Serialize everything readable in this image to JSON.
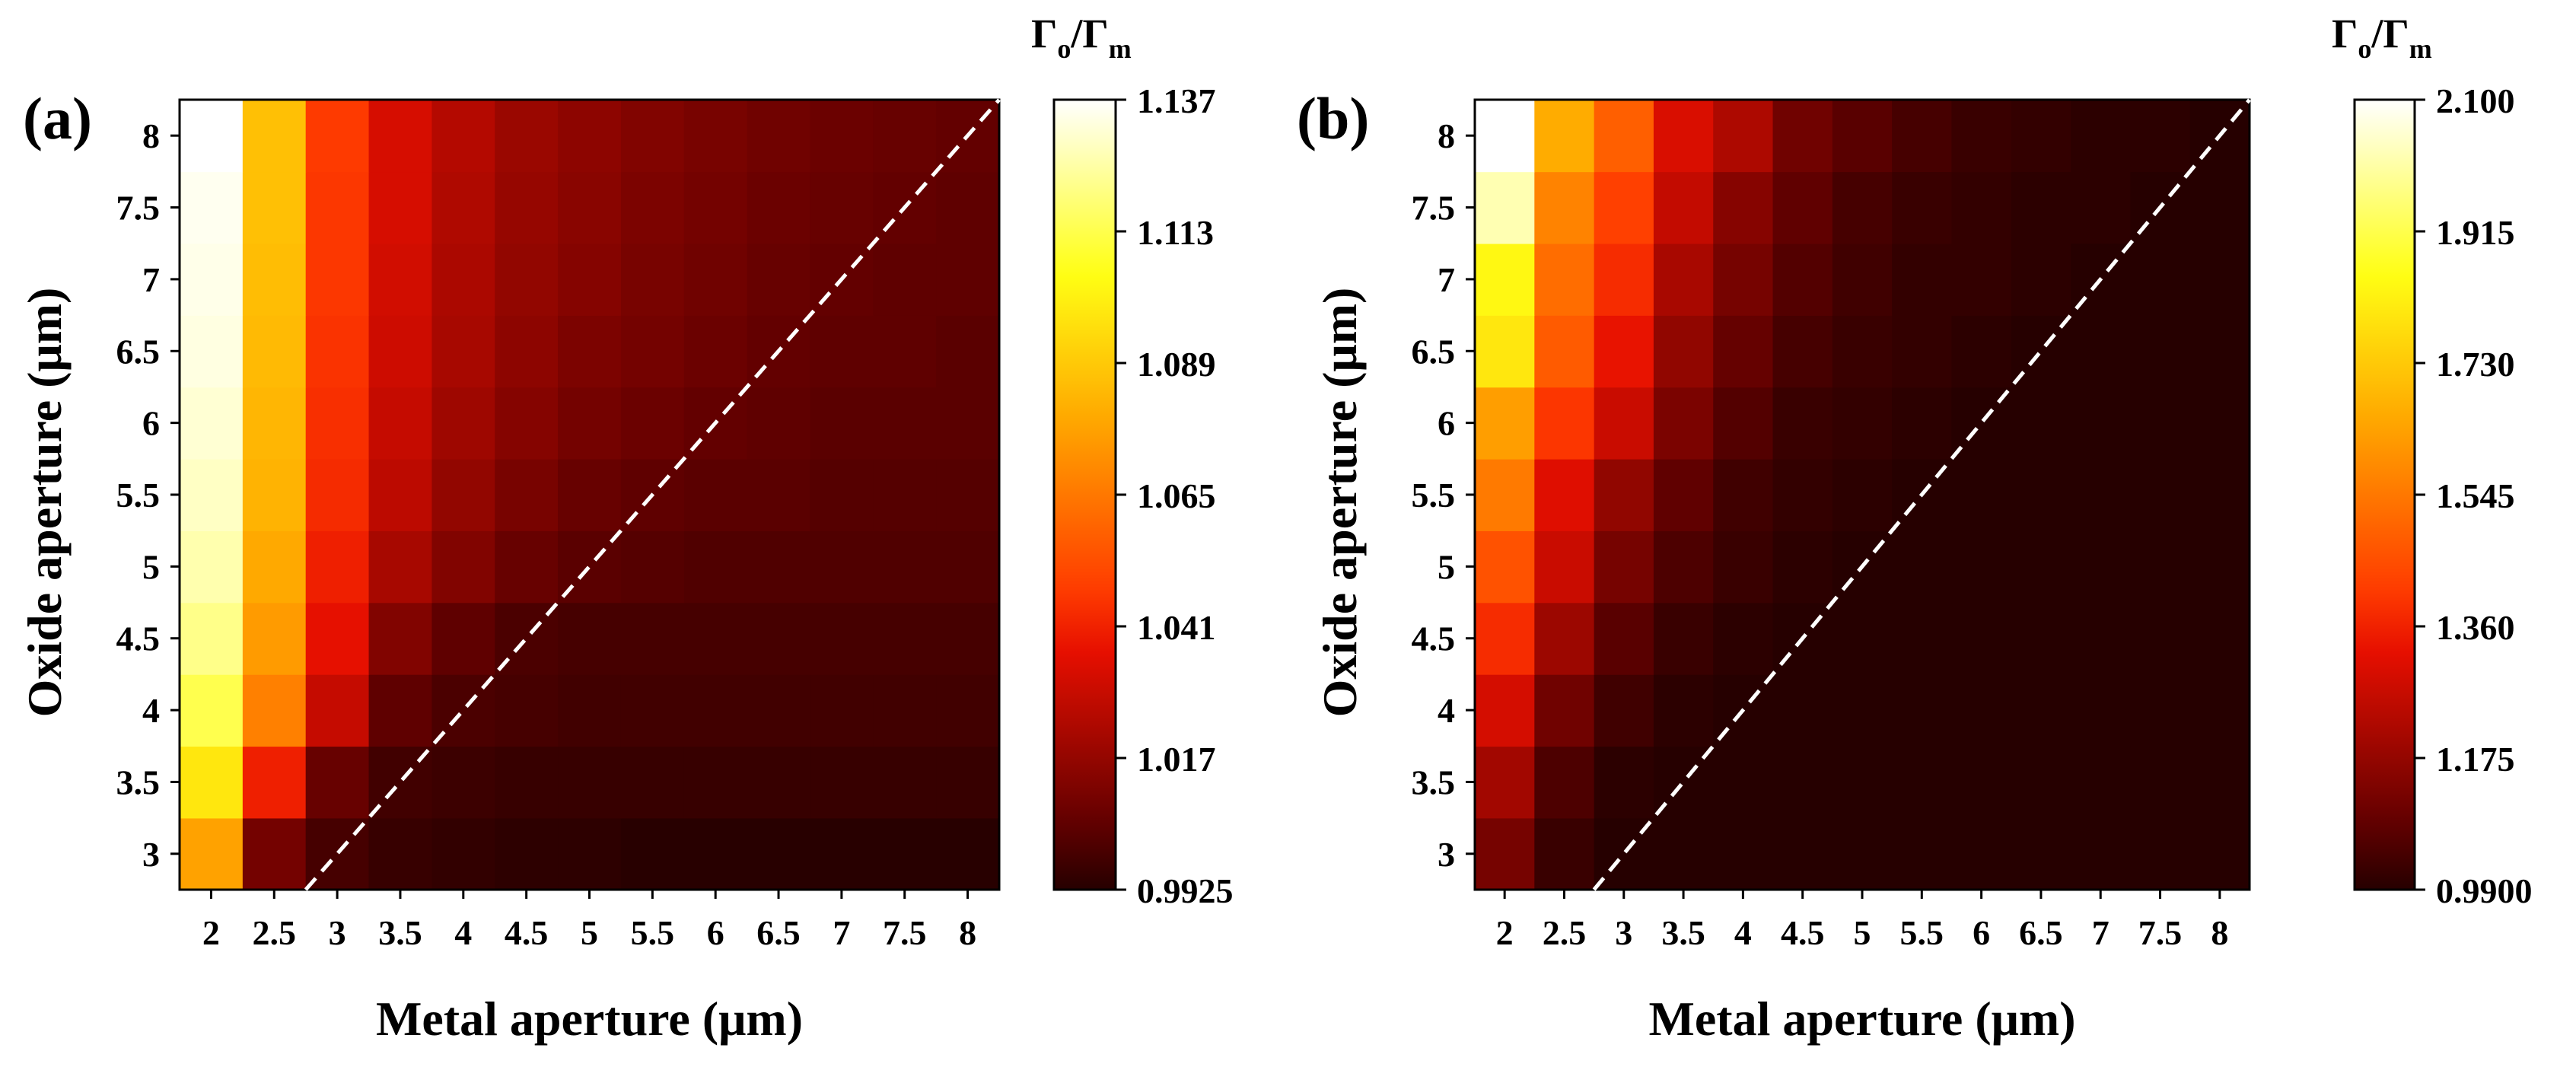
{
  "chart_data": [
    {
      "type": "heatmap",
      "panel_label": "(a)",
      "xlabel": "Metal aperture (μm)",
      "ylabel": "Oxide aperture (μm)",
      "x_ticks": [
        "2",
        "2.5",
        "3",
        "3.5",
        "4",
        "4.5",
        "5",
        "5.5",
        "6",
        "6.5",
        "7",
        "7.5",
        "8"
      ],
      "y_ticks": [
        "3",
        "3.5",
        "4",
        "4.5",
        "5",
        "5.5",
        "6",
        "6.5",
        "7",
        "7.5",
        "8"
      ],
      "x_values": [
        2,
        2.5,
        3,
        3.5,
        4,
        4.5,
        5,
        5.5,
        6,
        6.5,
        7,
        7.5,
        8
      ],
      "y_values": [
        3,
        3.5,
        4,
        4.5,
        5,
        5.5,
        6,
        6.5,
        7,
        7.5,
        8
      ],
      "colorbar": {
        "title_main": "Γ",
        "title_sub1": "o",
        "title_slash": "/Γ",
        "title_sub2": "m",
        "min": 0.9925,
        "max": 1.137,
        "tick_labels": [
          "1.137",
          "1.113",
          "1.089",
          "1.065",
          "1.041",
          "1.017",
          "0.9925"
        ]
      },
      "diagonal": "Oxide aperture = Metal aperture (white dashed line)",
      "values": [
        [
          1.077,
          1.009,
          0.999,
          0.996,
          0.995,
          0.994,
          0.994,
          0.993,
          0.993,
          0.993,
          0.993,
          0.993,
          0.993
        ],
        [
          1.098,
          1.04,
          1.006,
          0.998,
          0.997,
          0.996,
          0.996,
          0.996,
          0.996,
          0.996,
          0.996,
          0.996,
          0.996
        ],
        [
          1.113,
          1.067,
          1.028,
          1.004,
          1.0,
          0.999,
          0.998,
          0.998,
          0.998,
          0.998,
          0.998,
          0.998,
          0.998
        ],
        [
          1.121,
          1.075,
          1.036,
          1.012,
          1.004,
          1.0,
          0.999,
          0.999,
          0.999,
          0.999,
          0.999,
          0.999,
          0.999
        ],
        [
          1.126,
          1.079,
          1.04,
          1.021,
          1.012,
          1.006,
          1.003,
          1.002,
          1.001,
          1.001,
          1.001,
          1.001,
          1.001
        ],
        [
          1.129,
          1.082,
          1.043,
          1.026,
          1.016,
          1.01,
          1.006,
          1.004,
          1.003,
          1.003,
          1.002,
          1.002,
          1.002
        ],
        [
          1.131,
          1.083,
          1.044,
          1.028,
          1.019,
          1.013,
          1.009,
          1.007,
          1.005,
          1.004,
          1.003,
          1.003,
          1.003
        ],
        [
          1.133,
          1.084,
          1.045,
          1.03,
          1.021,
          1.015,
          1.011,
          1.009,
          1.007,
          1.005,
          1.004,
          1.004,
          1.003
        ],
        [
          1.134,
          1.085,
          1.046,
          1.031,
          1.022,
          1.016,
          1.013,
          1.01,
          1.008,
          1.006,
          1.005,
          1.004,
          1.004
        ],
        [
          1.135,
          1.086,
          1.046,
          1.032,
          1.023,
          1.017,
          1.014,
          1.011,
          1.009,
          1.007,
          1.006,
          1.005,
          1.004
        ],
        [
          1.137,
          1.086,
          1.047,
          1.032,
          1.024,
          1.018,
          1.015,
          1.012,
          1.01,
          1.008,
          1.007,
          1.006,
          1.005
        ]
      ]
    },
    {
      "type": "heatmap",
      "panel_label": "(b)",
      "xlabel": "Metal aperture (μm)",
      "ylabel": "Oxide aperture (μm)",
      "x_ticks": [
        "2",
        "2.5",
        "3",
        "3.5",
        "4",
        "4.5",
        "5",
        "5.5",
        "6",
        "6.5",
        "7",
        "7.5",
        "8"
      ],
      "y_ticks": [
        "3",
        "3.5",
        "4",
        "4.5",
        "5",
        "5.5",
        "6",
        "6.5",
        "7",
        "7.5",
        "8"
      ],
      "x_values": [
        2,
        2.5,
        3,
        3.5,
        4,
        4.5,
        5,
        5.5,
        6,
        6.5,
        7,
        7.5,
        8
      ],
      "y_values": [
        3,
        3.5,
        4,
        4.5,
        5,
        5.5,
        6,
        6.5,
        7,
        7.5,
        8
      ],
      "colorbar": {
        "title_main": "Γ",
        "title_sub1": "o",
        "title_slash": "/Γ",
        "title_sub2": "m",
        "min": 0.99,
        "max": 2.1,
        "tick_labels": [
          "2.100",
          "1.915",
          "1.730",
          "1.545",
          "1.360",
          "1.175",
          "0.9900"
        ]
      },
      "diagonal": "Oxide aperture = Metal aperture (white dashed line)",
      "values": [
        [
          1.12,
          1.02,
          0.99,
          0.99,
          0.99,
          0.99,
          0.99,
          0.99,
          0.99,
          0.99,
          0.99,
          0.99,
          0.99
        ],
        [
          1.2,
          1.05,
          1.0,
          0.99,
          0.99,
          0.99,
          0.99,
          0.99,
          0.99,
          0.99,
          0.99,
          0.99,
          0.99
        ],
        [
          1.29,
          1.11,
          1.03,
          1.0,
          0.99,
          0.99,
          0.99,
          0.99,
          0.99,
          0.99,
          0.99,
          0.99,
          0.99
        ],
        [
          1.38,
          1.19,
          1.07,
          1.02,
          1.0,
          0.99,
          0.99,
          0.99,
          0.99,
          0.99,
          0.99,
          0.99,
          0.99
        ],
        [
          1.46,
          1.27,
          1.12,
          1.05,
          1.02,
          1.0,
          0.99,
          0.99,
          0.99,
          0.99,
          0.99,
          0.99,
          0.99
        ],
        [
          1.55,
          1.31,
          1.17,
          1.08,
          1.03,
          1.01,
          1.0,
          0.99,
          0.99,
          0.99,
          0.99,
          0.99,
          0.99
        ],
        [
          1.63,
          1.4,
          1.27,
          1.13,
          1.06,
          1.02,
          1.01,
          1.0,
          0.99,
          0.99,
          0.99,
          0.99,
          0.99
        ],
        [
          1.8,
          1.48,
          1.33,
          1.17,
          1.09,
          1.04,
          1.02,
          1.01,
          1.0,
          0.99,
          0.99,
          0.99,
          0.99
        ],
        [
          1.84,
          1.52,
          1.38,
          1.21,
          1.12,
          1.06,
          1.03,
          1.01,
          1.01,
          1.0,
          0.99,
          0.99,
          0.99
        ],
        [
          2.02,
          1.57,
          1.42,
          1.26,
          1.15,
          1.08,
          1.04,
          1.02,
          1.01,
          1.0,
          1.0,
          0.99,
          0.99
        ],
        [
          2.1,
          1.66,
          1.49,
          1.3,
          1.22,
          1.11,
          1.07,
          1.04,
          1.02,
          1.01,
          1.0,
          1.0,
          0.99
        ]
      ]
    }
  ]
}
